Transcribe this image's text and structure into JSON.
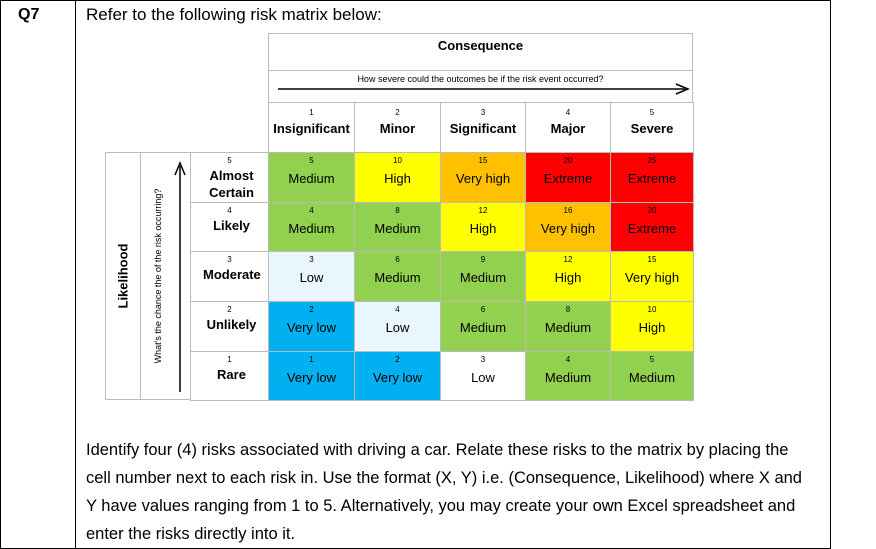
{
  "question": {
    "label": "Q7",
    "intro": "Refer to the following risk matrix below:",
    "instructions": "Identify four (4) risks associated with driving a car. Relate these risks to the matrix by placing the cell number next to each risk in. Use the format (X, Y) i.e. (Consequence, Likelihood) where X and Y have values ranging from 1 to 5. Alternatively, you may create your own Excel spreadsheet and enter the risks directly into it."
  },
  "matrix": {
    "consequence_title": "Consequence",
    "consequence_subtitle": "How severe could the outcomes be if the risk event occurred?",
    "likelihood_title": "Likelihood",
    "likelihood_subtitle": "What's the chance the of the risk occurring?",
    "columns": [
      {
        "level": 1,
        "label": "Insignificant"
      },
      {
        "level": 2,
        "label": "Minor"
      },
      {
        "level": 3,
        "label": "Significant"
      },
      {
        "level": 4,
        "label": "Major"
      },
      {
        "level": 5,
        "label": "Severe"
      }
    ],
    "rows": [
      {
        "level": 5,
        "label": "Almost Certain",
        "cells": [
          {
            "score": 5,
            "rating": "Medium",
            "color": "#92d050"
          },
          {
            "score": 10,
            "rating": "High",
            "color": "#ffff00"
          },
          {
            "score": 15,
            "rating": "Very high",
            "color": "#ffc000"
          },
          {
            "score": 20,
            "rating": "Extreme",
            "color": "#ff0000"
          },
          {
            "score": 25,
            "rating": "Extreme",
            "color": "#ff0000"
          }
        ]
      },
      {
        "level": 4,
        "label": "Likely",
        "cells": [
          {
            "score": 4,
            "rating": "Medium",
            "color": "#92d050"
          },
          {
            "score": 8,
            "rating": "Medium",
            "color": "#92d050"
          },
          {
            "score": 12,
            "rating": "High",
            "color": "#ffff00"
          },
          {
            "score": 16,
            "rating": "Very high",
            "color": "#ffc000"
          },
          {
            "score": 20,
            "rating": "Extreme",
            "color": "#ff0000"
          }
        ]
      },
      {
        "level": 3,
        "label": "Moderate",
        "cells": [
          {
            "score": 3,
            "rating": "Low",
            "color": "#eaf6fd"
          },
          {
            "score": 6,
            "rating": "Medium",
            "color": "#92d050"
          },
          {
            "score": 9,
            "rating": "Medium",
            "color": "#92d050"
          },
          {
            "score": 12,
            "rating": "High",
            "color": "#ffff00"
          },
          {
            "score": 15,
            "rating": "Very high",
            "color": "#ffff00"
          }
        ]
      },
      {
        "level": 2,
        "label": "Unlikely",
        "cells": [
          {
            "score": 2,
            "rating": "Very low",
            "color": "#00b0f0"
          },
          {
            "score": 4,
            "rating": "Low",
            "color": "#eaf6fd"
          },
          {
            "score": 6,
            "rating": "Medium",
            "color": "#92d050"
          },
          {
            "score": 8,
            "rating": "Medium",
            "color": "#92d050"
          },
          {
            "score": 10,
            "rating": "High",
            "color": "#ffff00"
          }
        ]
      },
      {
        "level": 1,
        "label": "Rare",
        "cells": [
          {
            "score": 1,
            "rating": "Very low",
            "color": "#00b0f0"
          },
          {
            "score": 2,
            "rating": "Very low",
            "color": "#00b0f0"
          },
          {
            "score": 3,
            "rating": "Low",
            "color": "#ffffff"
          },
          {
            "score": 4,
            "rating": "Medium",
            "color": "#92d050"
          },
          {
            "score": 5,
            "rating": "Medium",
            "color": "#92d050"
          }
        ]
      }
    ]
  }
}
